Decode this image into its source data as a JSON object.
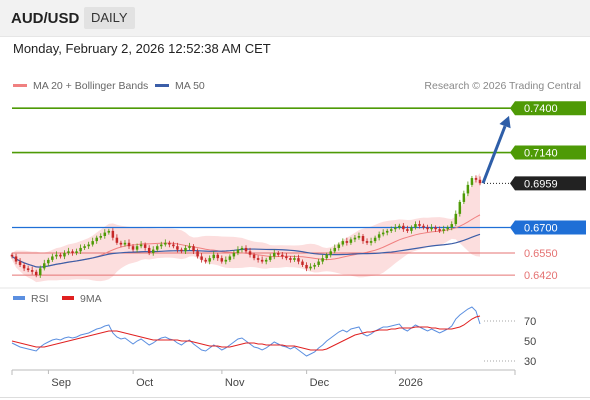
{
  "header": {
    "symbol": "AUD/USD",
    "period": "DAILY",
    "datetime": "Monday, February 2, 2026 12:52:38 AM CET"
  },
  "legend": {
    "ma20": "MA 20 + Bollinger Bands",
    "ma50": "MA 50",
    "credit": "Research © 2026 Trading Central"
  },
  "rsi_legend": {
    "rsi": "RSI",
    "ma": "9MA"
  },
  "colors": {
    "green_level": "#4e9a06",
    "blue_level": "#1f6fd6",
    "red_level": "#e57373",
    "bollinger_fill": "#fbd3d3",
    "ma20": "#f08080",
    "ma50": "#3b5ea8",
    "candle_up": "#4e9a06",
    "candle_down": "#c62828",
    "current_price": "#222222",
    "arrow": "#2e5ea8",
    "rsi": "#5b8fe0",
    "rsi_ma": "#e02020"
  },
  "chart_data": [
    {
      "type": "candlestick",
      "title": "AUD/USD",
      "x_ticks": [
        "Sep",
        "Oct",
        "Nov",
        "Dec",
        "2026"
      ],
      "ylim": [
        0.638,
        0.746
      ],
      "levels": [
        {
          "value": 0.74,
          "label": "0.7400",
          "kind": "resistance"
        },
        {
          "value": 0.714,
          "label": "0.7140",
          "kind": "resistance"
        },
        {
          "value": 0.6959,
          "label": "0.6959",
          "kind": "current"
        },
        {
          "value": 0.67,
          "label": "0.6700",
          "kind": "pivot"
        },
        {
          "value": 0.655,
          "label": "0.6550",
          "kind": "support"
        },
        {
          "value": 0.642,
          "label": "0.6420",
          "kind": "support"
        }
      ],
      "projection": {
        "from": 0.696,
        "to": 0.7355
      },
      "close": [
        0.653,
        0.65,
        0.648,
        0.646,
        0.645,
        0.644,
        0.642,
        0.646,
        0.649,
        0.651,
        0.653,
        0.654,
        0.653,
        0.655,
        0.656,
        0.655,
        0.656,
        0.658,
        0.659,
        0.66,
        0.662,
        0.664,
        0.665,
        0.667,
        0.668,
        0.664,
        0.661,
        0.66,
        0.661,
        0.659,
        0.657,
        0.659,
        0.66,
        0.658,
        0.655,
        0.657,
        0.659,
        0.66,
        0.661,
        0.66,
        0.659,
        0.657,
        0.656,
        0.658,
        0.659,
        0.656,
        0.653,
        0.651,
        0.65,
        0.652,
        0.654,
        0.652,
        0.65,
        0.651,
        0.653,
        0.655,
        0.657,
        0.658,
        0.656,
        0.654,
        0.652,
        0.651,
        0.65,
        0.651,
        0.653,
        0.655,
        0.654,
        0.653,
        0.652,
        0.651,
        0.652,
        0.65,
        0.648,
        0.646,
        0.647,
        0.648,
        0.65,
        0.652,
        0.654,
        0.656,
        0.658,
        0.66,
        0.662,
        0.661,
        0.663,
        0.664,
        0.665,
        0.662,
        0.661,
        0.662,
        0.664,
        0.666,
        0.667,
        0.668,
        0.669,
        0.67,
        0.671,
        0.669,
        0.668,
        0.67,
        0.672,
        0.671,
        0.67,
        0.669,
        0.67,
        0.669,
        0.668,
        0.669,
        0.67,
        0.672,
        0.678,
        0.685,
        0.69,
        0.695,
        0.699,
        0.698,
        0.696
      ]
    },
    {
      "type": "line",
      "title": "RSI",
      "ylim": [
        25,
        85
      ],
      "y_ticks": [
        70,
        50,
        30
      ],
      "series": [
        {
          "name": "RSI",
          "values": [
            48,
            46,
            44,
            43,
            42,
            41,
            40,
            44,
            47,
            49,
            51,
            52,
            51,
            53,
            54,
            53,
            54,
            56,
            57,
            58,
            60,
            62,
            63,
            65,
            66,
            58,
            54,
            52,
            53,
            50,
            47,
            50,
            52,
            49,
            46,
            48,
            51,
            53,
            54,
            52,
            51,
            48,
            46,
            49,
            51,
            47,
            44,
            41,
            40,
            43,
            46,
            44,
            41,
            43,
            46,
            49,
            52,
            53,
            50,
            47,
            44,
            43,
            41,
            43,
            46,
            49,
            47,
            45,
            44,
            42,
            44,
            41,
            38,
            35,
            37,
            39,
            43,
            46,
            50,
            53,
            56,
            59,
            61,
            59,
            62,
            63,
            64,
            57,
            55,
            57,
            60,
            62,
            64,
            64,
            65,
            66,
            67,
            62,
            60,
            63,
            66,
            64,
            62,
            60,
            62,
            60,
            58,
            60,
            62,
            65,
            72,
            76,
            79,
            82,
            84,
            80,
            67
          ]
        },
        {
          "name": "9MA",
          "values": [
            50,
            49,
            48,
            47,
            46,
            45,
            44,
            44,
            44,
            45,
            46,
            47,
            48,
            49,
            50,
            51,
            52,
            53,
            54,
            55,
            56,
            57,
            58,
            59,
            60,
            60,
            60,
            59,
            58,
            57,
            56,
            55,
            54,
            53,
            52,
            51,
            51,
            51,
            51,
            51,
            51,
            51,
            50,
            50,
            50,
            49,
            48,
            47,
            46,
            45,
            45,
            45,
            44,
            44,
            44,
            45,
            46,
            47,
            48,
            48,
            48,
            47,
            47,
            46,
            46,
            46,
            46,
            46,
            45,
            45,
            45,
            44,
            43,
            42,
            41,
            41,
            41,
            41,
            42,
            44,
            46,
            48,
            50,
            52,
            54,
            56,
            57,
            58,
            59,
            59,
            60,
            61,
            61,
            61,
            62,
            62,
            63,
            63,
            63,
            63,
            64,
            64,
            64,
            64,
            63,
            63,
            62,
            62,
            62,
            62,
            63,
            64,
            66,
            69,
            72,
            74,
            75
          ]
        }
      ]
    }
  ]
}
